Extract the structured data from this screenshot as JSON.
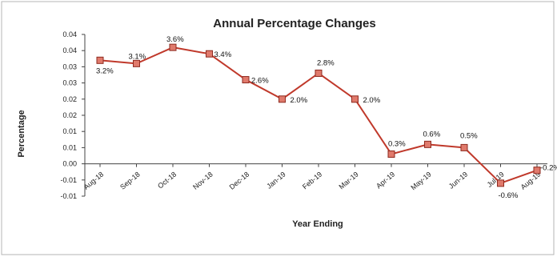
{
  "chart_data": {
    "type": "line",
    "title": "Annual Percentage Changes",
    "xlabel": "Year Ending",
    "ylabel": "Percentage",
    "categories": [
      "Aug-18",
      "Sep-18",
      "Oct-18",
      "Nov-18",
      "Dec-18",
      "Jan-19",
      "Feb-19",
      "Mar-19",
      "Apr-19",
      "May-19",
      "Jun-19",
      "Jul-19",
      "Aug-19"
    ],
    "series": [
      {
        "values": [
          0.032,
          0.031,
          0.036,
          0.034,
          0.026,
          0.02,
          0.028,
          0.02,
          0.003,
          0.006,
          0.005,
          -0.006,
          -0.002
        ],
        "labels": [
          "3.2%",
          "3.1%",
          "3.6%",
          "3.4%",
          "2.6%",
          "2.0%",
          "2.8%",
          "2.0%",
          "0.3%",
          "0.6%",
          "0.5%",
          "-0.6%",
          "-0.2%"
        ],
        "line_color": "#c0392b",
        "marker_color": "#e07a6c"
      }
    ],
    "y_ticks": [
      {
        "value": 0.04,
        "label": "0.04"
      },
      {
        "value": 0.035,
        "label": "0.04"
      },
      {
        "value": 0.03,
        "label": "0.03"
      },
      {
        "value": 0.025,
        "label": "0.03"
      },
      {
        "value": 0.02,
        "label": "0.02"
      },
      {
        "value": 0.015,
        "label": "0.02"
      },
      {
        "value": 0.01,
        "label": "0.01"
      },
      {
        "value": 0.005,
        "label": "0.01"
      },
      {
        "value": 0.0,
        "label": "0.00"
      },
      {
        "value": -0.005,
        "label": "-0.01"
      },
      {
        "value": -0.01,
        "label": "-0.01"
      }
    ],
    "ylim": [
      -0.01,
      0.04
    ],
    "grid": false,
    "legend": "none"
  }
}
